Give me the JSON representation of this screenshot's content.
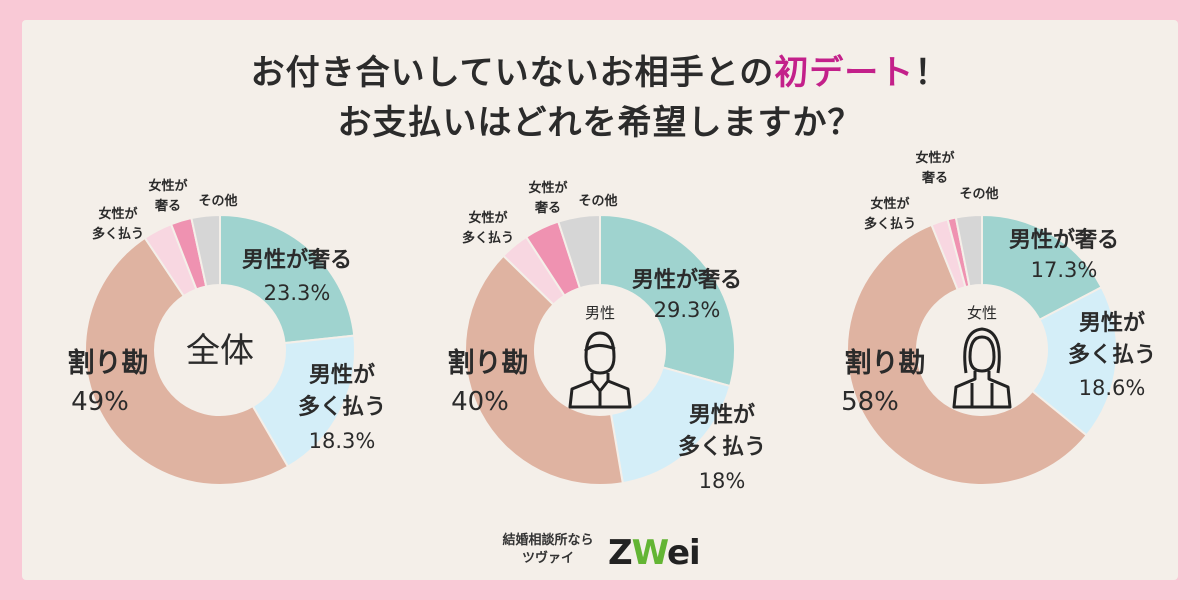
{
  "title": {
    "line1_prefix": "お付き合いしていないお相手との",
    "line1_accent": "初デート",
    "line1_suffix": "！",
    "line2": "お支払いはどれを希望しますか？"
  },
  "colors": {
    "male_pays": "#9fd3cf",
    "male_pays_more": "#d4eef8",
    "split": "#dfb3a1",
    "female_pays_more": "#f8d7e1",
    "female_pays": "#ef92b1",
    "other": "#d6d6d6"
  },
  "chart_data": [
    {
      "type": "pie",
      "center_label": "全体",
      "categories": [
        "男性が奢る",
        "男性が多く払う",
        "割り勘",
        "女性が多く払う",
        "女性が奢る",
        "その他"
      ],
      "values": [
        23.3,
        18.3,
        49,
        3.5,
        2.5,
        3.4
      ],
      "labels": {
        "male_pays": "男性が奢る",
        "male_pays_pct": "23.3%",
        "male_more_1": "男性が",
        "male_more_2": "多く払う",
        "male_more_pct": "18.3%",
        "split": "割り勘",
        "split_pct": "49%",
        "female_more_1": "女性が",
        "female_more_2": "多く払う",
        "female_pays_1": "女性が",
        "female_pays_2": "奢る",
        "other": "その他"
      }
    },
    {
      "type": "pie",
      "center_label": "男性",
      "categories": [
        "男性が奢る",
        "男性が多く払う",
        "割り勘",
        "女性が多く払う",
        "女性が奢る",
        "その他"
      ],
      "values": [
        29.3,
        18,
        40,
        3.5,
        4.2,
        5
      ],
      "labels": {
        "male_pays": "男性が奢る",
        "male_pays_pct": "29.3%",
        "male_more_1": "男性が",
        "male_more_2": "多く払う",
        "male_more_pct": "18%",
        "split": "割り勘",
        "split_pct": "40%",
        "female_more_1": "女性が",
        "female_more_2": "多く払う",
        "female_pays_1": "女性が",
        "female_pays_2": "奢る",
        "other": "その他"
      }
    },
    {
      "type": "pie",
      "center_label": "女性",
      "categories": [
        "男性が奢る",
        "男性が多く払う",
        "割り勘",
        "女性が多く払う",
        "女性が奢る",
        "その他"
      ],
      "values": [
        17.3,
        18.6,
        58,
        2,
        1,
        3.1
      ],
      "labels": {
        "male_pays": "男性が奢る",
        "male_pays_pct": "17.3%",
        "male_more_1": "男性が",
        "male_more_2": "多く払う",
        "male_more_pct": "18.6%",
        "split": "割り勘",
        "split_pct": "58%",
        "female_more_1": "女性が",
        "female_more_2": "多く払う",
        "female_pays_1": "女性が",
        "female_pays_2": "奢る",
        "other": "その他"
      }
    }
  ],
  "logo": {
    "line1": "結婚相談所なら",
    "line2": "ツヴァイ",
    "mark_z": "Z",
    "mark_w": "W",
    "mark_rest": "ei"
  }
}
